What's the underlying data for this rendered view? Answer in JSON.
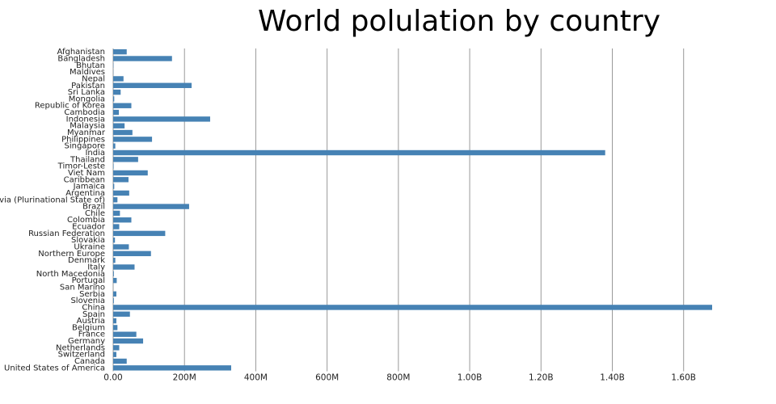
{
  "chart_data": {
    "type": "bar",
    "orientation": "horizontal",
    "title": "World polulation by country",
    "categories": [
      "Afghanistan",
      "Bangladesh",
      "Bhutan",
      "Maldives",
      "Nepal",
      "Pakistan",
      "Sri Lanka",
      "Mongolia",
      "Republic of Korea",
      "Cambodia",
      "Indonesia",
      "Malaysia",
      "Myanmar",
      "Philippines",
      "Singapore",
      "India",
      "Thailand",
      "Timor-Leste",
      "Viet Nam",
      "Caribbean",
      "Jamaica",
      "Argentina",
      "Bolivia (Plurinational State of)",
      "Brazil",
      "Chile",
      "Colombia",
      "Ecuador",
      "Russian Federation",
      "Slovakia",
      "Ukraine",
      "Northern Europe",
      "Denmark",
      "Italy",
      "North Macedonia",
      "Portugal",
      "San Marino",
      "Serbia",
      "Slovenia",
      "China",
      "Spain",
      "Austria",
      "Belgium",
      "France",
      "Germany",
      "Netherlands",
      "Switzerland",
      "Canada",
      "United States of America"
    ],
    "values": [
      38000000,
      165000000,
      800000,
      500000,
      29000000,
      220000000,
      21000000,
      3000000,
      51000000,
      16000000,
      272000000,
      32000000,
      54000000,
      109000000,
      6000000,
      1380000000,
      70000000,
      1300000,
      97000000,
      43000000,
      3000000,
      45000000,
      12000000,
      213000000,
      19000000,
      51000000,
      17000000,
      146000000,
      5000000,
      44000000,
      106000000,
      6000000,
      60000000,
      2000000,
      10000000,
      30000,
      9000000,
      2000000,
      1680000000,
      47000000,
      9000000,
      12000000,
      65000000,
      84000000,
      17000000,
      9000000,
      38000000,
      331000000
    ],
    "color": "#4682b4",
    "xlim": [
      0,
      1680000000
    ],
    "xticks": [
      {
        "value": 0,
        "label": "0.00"
      },
      {
        "value": 200000000,
        "label": "200M"
      },
      {
        "value": 400000000,
        "label": "400M"
      },
      {
        "value": 600000000,
        "label": "600M"
      },
      {
        "value": 800000000,
        "label": "800M"
      },
      {
        "value": 1000000000,
        "label": "1.00B"
      },
      {
        "value": 1200000000,
        "label": "1.20B"
      },
      {
        "value": 1400000000,
        "label": "1.40B"
      },
      {
        "value": 1600000000,
        "label": "1.60B"
      }
    ],
    "grid": true
  }
}
